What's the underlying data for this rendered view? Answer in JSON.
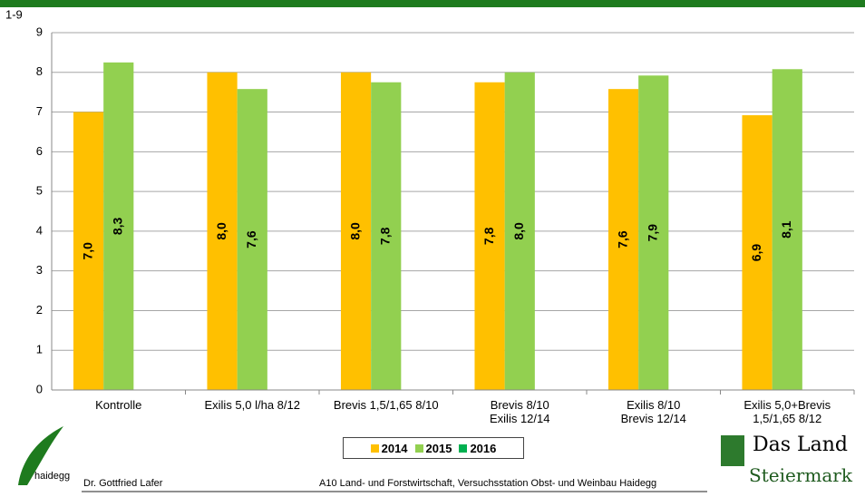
{
  "chart_data": {
    "type": "bar",
    "y_label": "1-9",
    "categories": [
      "Kontrolle",
      "Exilis 5,0 l/ha 8/12",
      "Brevis 1,5/1,65 8/10",
      "Brevis 8/10\nExilis 12/14",
      "Exilis 8/10\nBrevis 12/14",
      "Exilis 5,0+Brevis\n1,5/1,65 8/12"
    ],
    "series": [
      {
        "name": "2014",
        "color": "#ffc000",
        "values": [
          7.0,
          8.0,
          8.0,
          7.75,
          7.58,
          6.92
        ],
        "value_labels": [
          "7,0",
          "8,0",
          "8,0",
          "7,8",
          "7,6",
          "6,9"
        ]
      },
      {
        "name": "2015",
        "color": "#92d050",
        "values": [
          8.25,
          7.58,
          7.75,
          8.0,
          7.92,
          8.08
        ],
        "value_labels": [
          "8,3",
          "7,6",
          "7,8",
          "8,0",
          "7,9",
          "8,1"
        ]
      },
      {
        "name": "2016",
        "color": "#00b050",
        "values": [
          null,
          null,
          null,
          null,
          null,
          null
        ]
      }
    ],
    "ylim": [
      0,
      9
    ],
    "yticks": [
      0,
      1,
      2,
      3,
      4,
      5,
      6,
      7,
      8,
      9
    ],
    "grid": true,
    "legend": "bottom"
  },
  "footer": {
    "logo_text": "haidegg",
    "author": "Dr. Gottfried Lafer",
    "institution": "A10 Land- und Forstwirtschaft, Versuchsstation Obst- und Weinbau Haidegg",
    "brand_line1": "Das Land",
    "brand_line2": "Steiermark"
  }
}
